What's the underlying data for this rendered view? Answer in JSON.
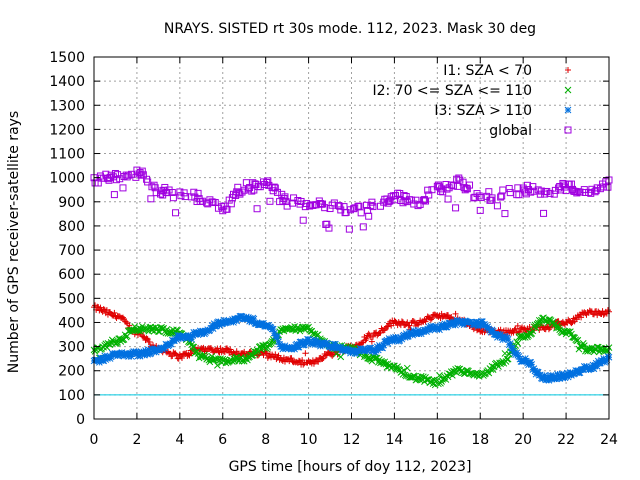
{
  "chart_data": {
    "type": "scatter",
    "title": "NRAYS. SISTED rt 30s mode. 112, 2023. Mask 30 deg",
    "xlabel": "GPS time [hours of doy 112, 2023]",
    "ylabel": "Number of GPS receiver-satellite rays",
    "xlim": [
      0,
      24
    ],
    "ylim": [
      0,
      1500
    ],
    "xticks": [
      "0",
      "2",
      "4",
      "6",
      "8",
      "10",
      "12",
      "14",
      "16",
      "18",
      "20",
      "22",
      "24"
    ],
    "yticks": [
      "0",
      "100",
      "200",
      "300",
      "400",
      "500",
      "600",
      "700",
      "800",
      "900",
      "1000",
      "1100",
      "1200",
      "1300",
      "1400",
      "1500"
    ],
    "grid": true,
    "legend_position": "top-right",
    "reference_line": {
      "y": 100,
      "color": "#00c8e0"
    },
    "series": [
      {
        "name": "I1: SZA < 70",
        "marker": "+",
        "color": "#e00000",
        "x": [
          0,
          1,
          2,
          3,
          4,
          5,
          6,
          7,
          8,
          9,
          10,
          11,
          12,
          13,
          14,
          15,
          16,
          17,
          18,
          19,
          20,
          21,
          22,
          23,
          24
        ],
        "values": [
          460,
          430,
          360,
          290,
          260,
          290,
          285,
          270,
          270,
          245,
          230,
          270,
          300,
          350,
          400,
          395,
          430,
          410,
          370,
          360,
          370,
          380,
          400,
          440,
          440
        ]
      },
      {
        "name": "I2: 70 <= SZA <= 110",
        "marker": "x",
        "color": "#00b000",
        "x": [
          0,
          1,
          2,
          3,
          4,
          5,
          6,
          7,
          8,
          9,
          10,
          11,
          12,
          13,
          14,
          15,
          16,
          17,
          18,
          19,
          20,
          21,
          22,
          23,
          24
        ],
        "values": [
          285,
          320,
          375,
          370,
          360,
          260,
          240,
          250,
          300,
          380,
          370,
          300,
          290,
          250,
          210,
          170,
          150,
          200,
          180,
          230,
          340,
          410,
          360,
          290,
          285
        ]
      },
      {
        "name": "I3: SZA > 110",
        "marker": "*",
        "color": "#0070e0",
        "x": [
          0,
          1,
          2,
          3,
          4,
          5,
          6,
          7,
          8,
          9,
          10,
          11,
          12,
          13,
          14,
          15,
          16,
          17,
          18,
          19,
          20,
          21,
          22,
          23,
          24
        ],
        "values": [
          240,
          265,
          270,
          285,
          340,
          355,
          400,
          420,
          390,
          290,
          320,
          305,
          280,
          285,
          330,
          360,
          380,
          400,
          395,
          340,
          245,
          170,
          180,
          210,
          250
        ]
      },
      {
        "name": "global",
        "marker": "square",
        "color": "#a000e0",
        "x": [
          0,
          1,
          2,
          3,
          4,
          5,
          6,
          7,
          8,
          9,
          10,
          11,
          12,
          13,
          14,
          15,
          16,
          17,
          18,
          19,
          20,
          21,
          22,
          23,
          24
        ],
        "values": [
          990,
          1010,
          1020,
          950,
          930,
          920,
          870,
          960,
          970,
          900,
          890,
          880,
          860,
          880,
          920,
          900,
          950,
          980,
          920,
          930,
          950,
          940,
          960,
          930,
          980
        ]
      }
    ]
  }
}
